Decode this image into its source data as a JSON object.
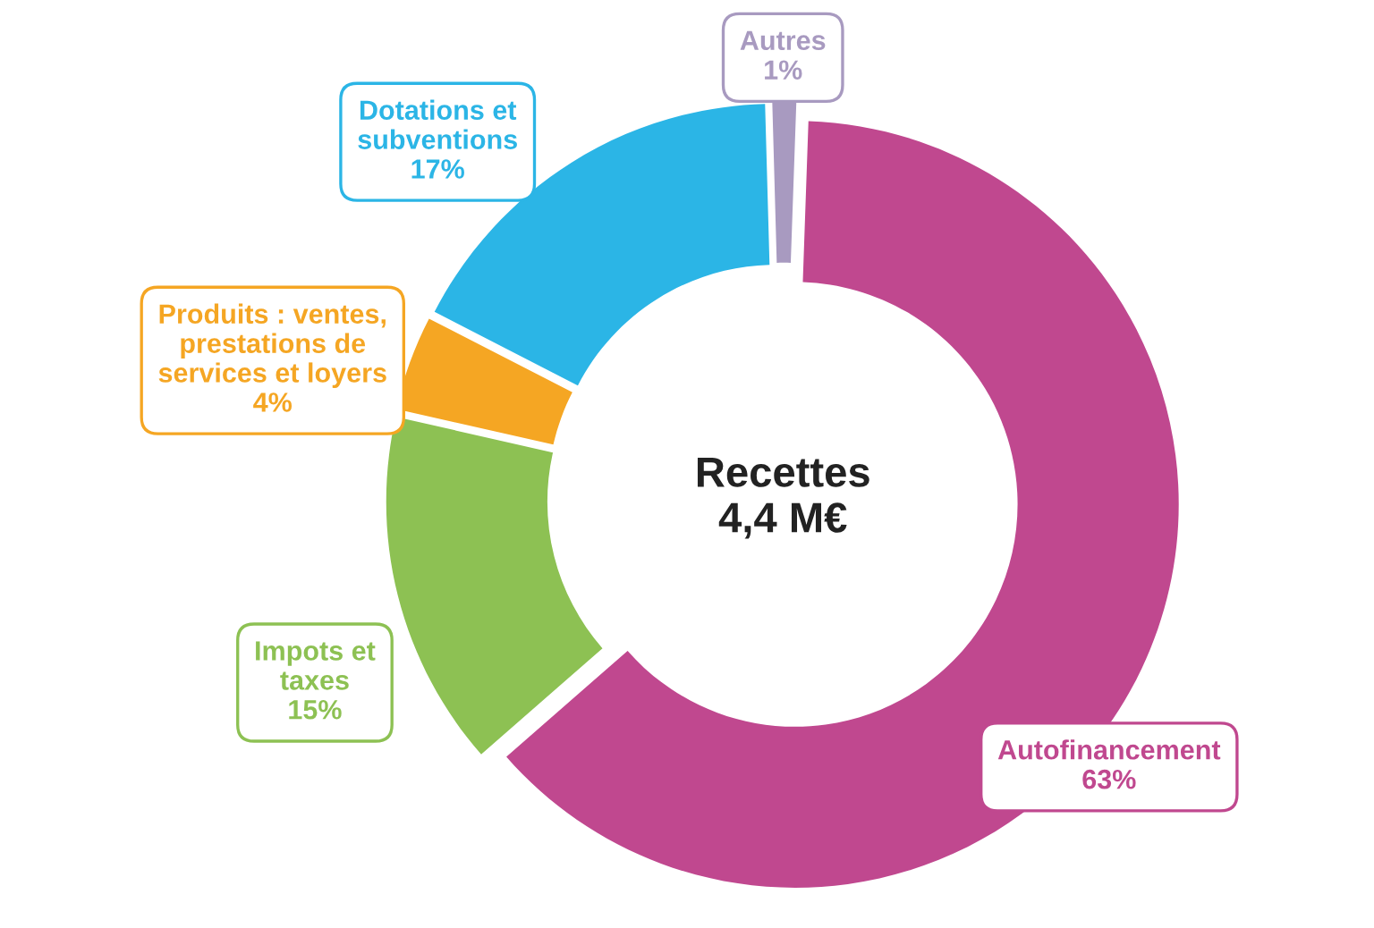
{
  "chart_data": {
    "type": "donut",
    "title": "Recettes\n4,4 M€",
    "categories": [
      "Autofinancement",
      "Impots et\ntaxes",
      "Produits : ventes,\nprestations de\nservices et loyers",
      "Dotations et\nsubventions",
      "Autres"
    ],
    "values": [
      63,
      15,
      4,
      17,
      1
    ],
    "colors": [
      "#c0488f",
      "#8dc153",
      "#f5a623",
      "#2bb5e6",
      "#a89ac0"
    ],
    "value_labels": [
      "63%",
      "15%",
      "4%",
      "17%",
      "1%"
    ],
    "legend": false
  }
}
